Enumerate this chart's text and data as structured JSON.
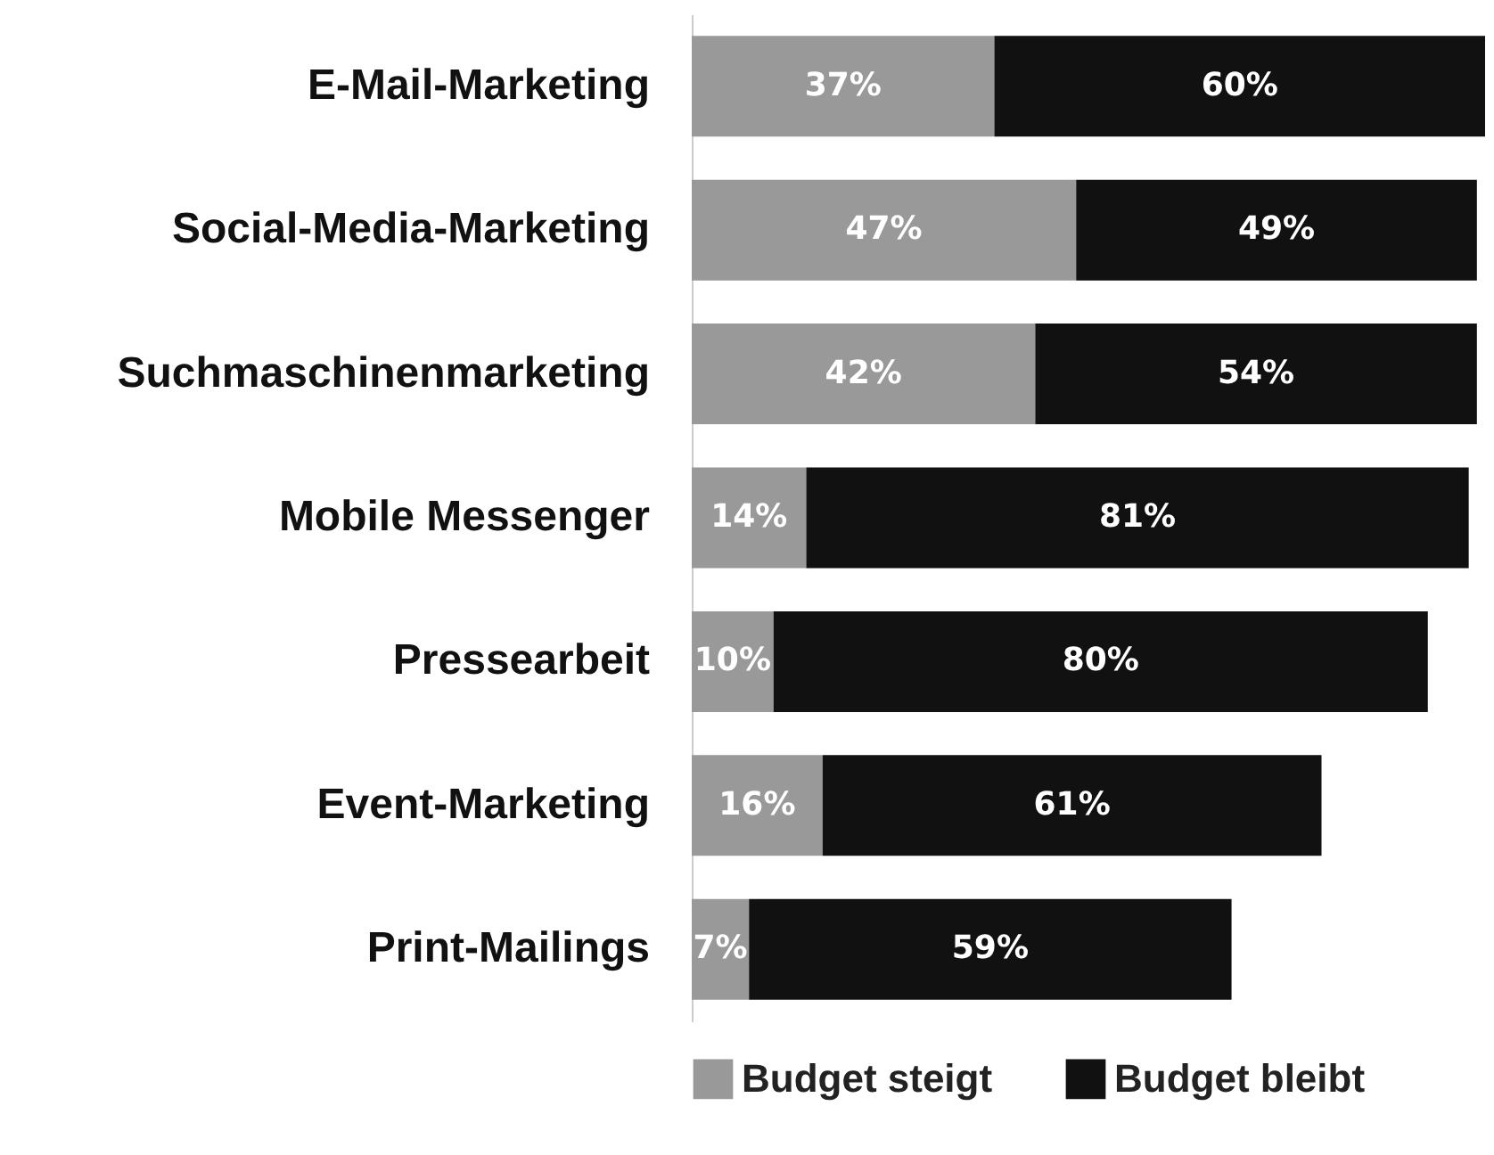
{
  "chart_data": {
    "type": "bar",
    "orientation": "horizontal",
    "stacked": true,
    "data_labels": true,
    "categories": [
      "E-Mail-Marketing",
      "Social-Media-Marketing",
      "Suchmaschinenmarketing",
      "Mobile Messenger",
      "Pressearbeit",
      "Event-Marketing",
      "Print-Mailings"
    ],
    "series": [
      {
        "name": "Budget steigt",
        "color": "#999999",
        "values": [
          37,
          47,
          42,
          14,
          10,
          16,
          7
        ],
        "value_labels": [
          "37%",
          "47%",
          "42%",
          "14%",
          "10%",
          "16%",
          "7%"
        ]
      },
      {
        "name": "Budget bleibt",
        "color": "#111111",
        "values": [
          60,
          49,
          54,
          81,
          80,
          61,
          59
        ],
        "value_labels": [
          "60%",
          "49%",
          "54%",
          "81%",
          "80%",
          "61%",
          "59%"
        ]
      }
    ],
    "tick_labels": "y",
    "legend": "bottom"
  }
}
